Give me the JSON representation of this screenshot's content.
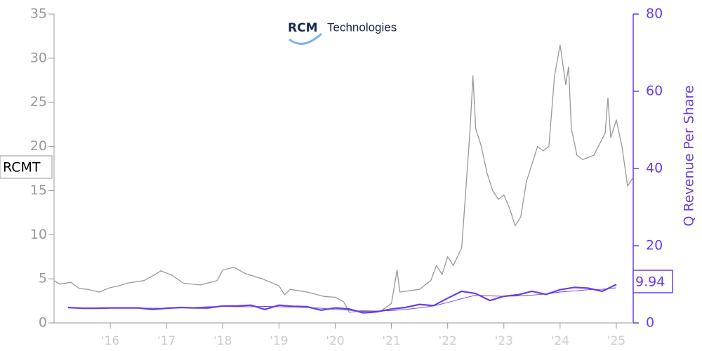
{
  "chart_data": {
    "type": "line",
    "logo": {
      "mark": "RCM",
      "name": "Technologies"
    },
    "y2label": "Q Revenue Per Share",
    "xlim": [
      2015.0,
      2025.3
    ],
    "xticks": [
      {
        "value": 2016,
        "label": "'16"
      },
      {
        "value": 2017,
        "label": "'17"
      },
      {
        "value": 2018,
        "label": "'18"
      },
      {
        "value": 2019,
        "label": "'19"
      },
      {
        "value": 2020,
        "label": "'20"
      },
      {
        "value": 2021,
        "label": "'21"
      },
      {
        "value": 2022,
        "label": "'22"
      },
      {
        "value": 2023,
        "label": "'23"
      },
      {
        "value": 2024,
        "label": "'24"
      },
      {
        "value": 2025,
        "label": "'25"
      }
    ],
    "ylim": [
      0,
      35
    ],
    "yticks": [
      0,
      5,
      10,
      15,
      20,
      25,
      30,
      35
    ],
    "y2lim": [
      0,
      80
    ],
    "y2ticks": [
      0,
      20,
      40,
      60,
      80
    ],
    "series": [
      {
        "name": "RCMT",
        "color": "#999999",
        "width": 1.3,
        "x": [
          2015.0,
          2015.1,
          2015.3,
          2015.45,
          2015.6,
          2015.8,
          2016.0,
          2016.15,
          2016.3,
          2016.6,
          2016.8,
          2016.9,
          2017.1,
          2017.3,
          2017.6,
          2017.9,
          2018.0,
          2018.2,
          2018.4,
          2018.7,
          2019.0,
          2019.1,
          2019.2,
          2019.5,
          2019.8,
          2020.0,
          2020.15,
          2020.25,
          2020.5,
          2020.8,
          2021.0,
          2021.1,
          2021.15,
          2021.5,
          2021.7,
          2021.8,
          2021.9,
          2022.0,
          2022.1,
          2022.25,
          2022.3,
          2022.4,
          2022.45,
          2022.5,
          2022.6,
          2022.7,
          2022.8,
          2022.9,
          2023.0,
          2023.1,
          2023.2,
          2023.3,
          2023.4,
          2023.5,
          2023.6,
          2023.7,
          2023.8,
          2023.9,
          2024.0,
          2024.1,
          2024.15,
          2024.2,
          2024.3,
          2024.4,
          2024.6,
          2024.8,
          2024.85,
          2024.9,
          2025.0,
          2025.1,
          2025.2,
          2025.3
        ],
        "values": [
          4.8,
          4.4,
          4.6,
          3.9,
          3.8,
          3.5,
          4.0,
          4.2,
          4.5,
          4.8,
          5.5,
          5.9,
          5.4,
          4.5,
          4.3,
          4.8,
          6.0,
          6.3,
          5.6,
          5.0,
          4.2,
          3.2,
          3.8,
          3.5,
          3.0,
          2.9,
          2.4,
          1.2,
          1.4,
          1.3,
          2.2,
          6.0,
          3.5,
          3.8,
          4.8,
          6.5,
          5.5,
          7.5,
          6.5,
          8.5,
          13.0,
          22.0,
          28.0,
          22.0,
          20.0,
          17.0,
          15.0,
          14.0,
          14.5,
          13.0,
          11.0,
          12.0,
          16.0,
          18.0,
          20.0,
          19.5,
          20.0,
          28.0,
          31.5,
          27.0,
          29.0,
          22.0,
          19.0,
          18.5,
          19.0,
          21.5,
          25.5,
          21.0,
          23.0,
          20.0,
          15.5,
          16.5
        ]
      },
      {
        "name": "",
        "color": "#6a3de8",
        "width": 2.2,
        "axis": "y2",
        "x": [
          2015.25,
          2015.5,
          2015.75,
          2016.0,
          2016.25,
          2016.5,
          2016.75,
          2017.0,
          2017.25,
          2017.5,
          2017.75,
          2018.0,
          2018.25,
          2018.5,
          2018.75,
          2019.0,
          2019.25,
          2019.5,
          2019.75,
          2020.0,
          2020.25,
          2020.5,
          2020.75,
          2021.0,
          2021.25,
          2021.5,
          2021.75,
          2022.0,
          2022.25,
          2022.5,
          2022.75,
          2023.0,
          2023.25,
          2023.5,
          2023.75,
          2024.0,
          2024.25,
          2024.5,
          2024.75,
          2025.0
        ],
        "values": [
          4.0,
          3.8,
          3.8,
          3.9,
          3.9,
          3.9,
          3.5,
          3.8,
          4.0,
          3.9,
          3.9,
          4.4,
          4.4,
          4.6,
          3.5,
          4.6,
          4.3,
          4.2,
          3.3,
          3.9,
          3.6,
          2.6,
          2.9,
          3.6,
          4.0,
          4.8,
          4.5,
          6.4,
          8.2,
          7.6,
          5.8,
          6.9,
          7.3,
          8.2,
          7.4,
          8.6,
          9.2,
          9.0,
          8.2,
          9.94
        ]
      },
      {
        "color": "#6a3de8",
        "width": 0.9,
        "axis": "y2",
        "x": [
          2015.5,
          2015.75,
          2016.0,
          2016.25,
          2016.5,
          2016.75,
          2017.0,
          2017.25,
          2017.5,
          2017.75,
          2018.0,
          2018.25,
          2018.5,
          2018.75,
          2019.0,
          2019.25,
          2019.5,
          2019.75,
          2020.0,
          2020.25,
          2020.5,
          2020.75,
          2021.0,
          2021.25,
          2021.5,
          2021.75,
          2022.0,
          2022.25,
          2022.5,
          2022.75,
          2023.0,
          2023.25,
          2023.5,
          2023.75,
          2024.0,
          2024.25,
          2024.5,
          2024.75,
          2025.0
        ],
        "values": [
          3.9,
          3.9,
          3.9,
          3.8,
          3.8,
          3.8,
          3.8,
          3.9,
          4.0,
          4.2,
          4.3,
          4.2,
          4.2,
          4.3,
          4.2,
          4.1,
          4.0,
          3.8,
          3.5,
          3.3,
          3.0,
          3.1,
          3.2,
          3.5,
          3.9,
          4.4,
          5.3,
          6.3,
          7.2,
          7.0,
          6.9,
          7.0,
          7.2,
          7.5,
          8.0,
          8.3,
          8.6,
          8.7,
          9.1
        ]
      }
    ]
  }
}
